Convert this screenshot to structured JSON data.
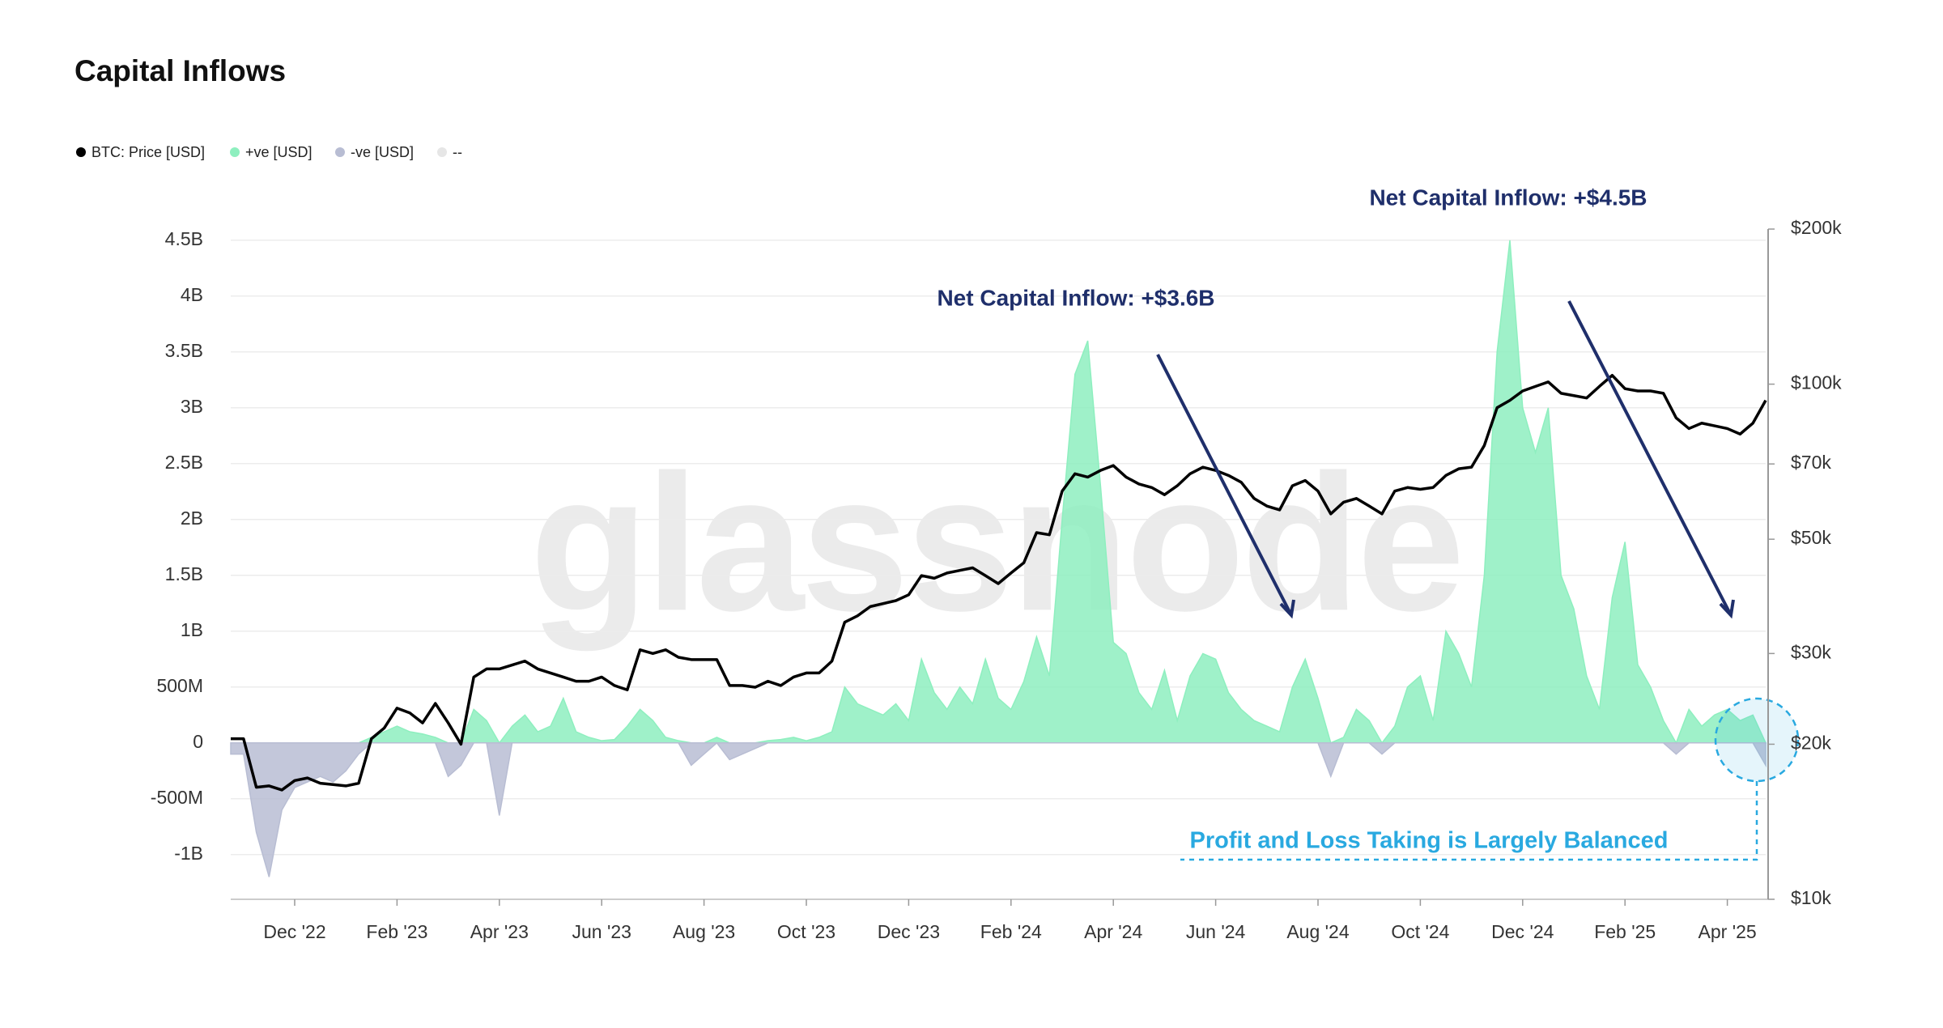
{
  "chart_data": {
    "type": "area",
    "title": "Capital Inflows",
    "watermark": "glassnode",
    "annotations": [
      "Net Capital Inflow: +$3.6B",
      "Net Capital Inflow: +$4.5B",
      "Profit and Loss Taking is Largely Balanced"
    ],
    "categories": [
      null,
      null,
      null,
      null,
      null,
      "Dec '22",
      null,
      null,
      null,
      null,
      null,
      null,
      null,
      "Feb '23",
      null,
      null,
      null,
      null,
      null,
      null,
      null,
      "Apr '23",
      null,
      null,
      null,
      null,
      null,
      null,
      null,
      "Jun '23",
      null,
      null,
      null,
      null,
      null,
      null,
      null,
      "Aug '23",
      null,
      null,
      null,
      null,
      null,
      null,
      null,
      "Oct '23",
      null,
      null,
      null,
      null,
      null,
      null,
      null,
      "Dec '23",
      null,
      null,
      null,
      null,
      null,
      null,
      null,
      "Feb '24",
      null,
      null,
      null,
      null,
      null,
      null,
      null,
      "Apr '24",
      null,
      null,
      null,
      null,
      null,
      null,
      null,
      "Jun '24",
      null,
      null,
      null,
      null,
      null,
      null,
      null,
      "Aug '24",
      null,
      null,
      null,
      null,
      null,
      null,
      null,
      "Oct '24",
      null,
      null,
      null,
      null,
      null,
      null,
      null,
      "Dec '24",
      null,
      null,
      null,
      null,
      null,
      null,
      null,
      "Feb '25",
      null,
      null,
      null,
      null,
      null,
      null,
      null,
      "Apr '25",
      null,
      null,
      null
    ],
    "series": [
      {
        "name": "BTC: Price [USD]",
        "color": "#000000",
        "type": "line",
        "axis": "y2",
        "values": [
          20500,
          20500,
          16500,
          16600,
          16300,
          17000,
          17200,
          16800,
          16700,
          16600,
          16800,
          20500,
          21500,
          23500,
          23000,
          22000,
          24000,
          22000,
          20000,
          27000,
          28000,
          28000,
          28500,
          29000,
          28000,
          27500,
          27000,
          26500,
          26500,
          27000,
          26000,
          25500,
          30500,
          30000,
          30500,
          29500,
          29200,
          29200,
          29200,
          26000,
          26000,
          25800,
          26500,
          26000,
          27000,
          27500,
          27500,
          29000,
          34500,
          35500,
          37000,
          37500,
          38000,
          39000,
          42500,
          42000,
          43000,
          43500,
          44000,
          42500,
          41000,
          43000,
          45000,
          51500,
          51000,
          62000,
          67000,
          66000,
          68000,
          69500,
          66000,
          64000,
          63000,
          61000,
          63500,
          67000,
          69000,
          68000,
          66500,
          64500,
          60000,
          58000,
          57000,
          63500,
          65000,
          62000,
          56000,
          59000,
          60000,
          58000,
          56000,
          62000,
          63000,
          62500,
          63000,
          66500,
          68500,
          69000,
          76000,
          90000,
          93000,
          97000,
          99000,
          101000,
          96000,
          95000,
          94000,
          99000,
          104000,
          98000,
          97000,
          97000,
          96000,
          86000,
          82000,
          84000,
          83000,
          82000,
          80000,
          84000,
          93000
        ]
      },
      {
        "name": "+ve [USD]",
        "color": "#8eefbf",
        "values": [
          0,
          0,
          0,
          0,
          0,
          0,
          0,
          0,
          0,
          0,
          0,
          50000000.0,
          100000000.0,
          150000000.0,
          100000000.0,
          80000000.0,
          50000000.0,
          0,
          0,
          300000000.0,
          200000000.0,
          0,
          150000000.0,
          250000000.0,
          100000000.0,
          150000000.0,
          400000000.0,
          100000000.0,
          50000000.0,
          20000000.0,
          30000000.0,
          150000000.0,
          300000000.0,
          200000000.0,
          50000000.0,
          20000000.0,
          0,
          0,
          50000000.0,
          0,
          0,
          0,
          20000000.0,
          30000000.0,
          50000000.0,
          20000000.0,
          50000000.0,
          100000000.0,
          500000000.0,
          350000000.0,
          300000000.0,
          250000000.0,
          350000000.0,
          200000000.0,
          750000000.0,
          450000000.0,
          300000000.0,
          500000000.0,
          350000000.0,
          750000000.0,
          400000000.0,
          300000000.0,
          550000000.0,
          950000000.0,
          600000000.0,
          2000000000.0,
          3300000000.0,
          3600000000.0,
          2300000000.0,
          900000000.0,
          800000000.0,
          450000000.0,
          300000000.0,
          650000000.0,
          200000000.0,
          600000000.0,
          800000000.0,
          750000000.0,
          450000000.0,
          300000000.0,
          200000000.0,
          150000000.0,
          100000000.0,
          500000000.0,
          750000000.0,
          400000000.0,
          0,
          50000000.0,
          300000000.0,
          200000000.0,
          0,
          150000000.0,
          500000000.0,
          600000000.0,
          200000000.0,
          1000000000.0,
          800000000.0,
          500000000.0,
          1500000000.0,
          3500000000.0,
          4500000000.0,
          3000000000.0,
          2600000000.0,
          3000000000.0,
          1500000000.0,
          1200000000.0,
          600000000.0,
          300000000.0,
          1300000000.0,
          1800000000.0,
          700000000.0,
          500000000.0,
          200000000.0,
          0,
          300000000.0,
          150000000.0,
          250000000.0,
          300000000.0,
          200000000.0,
          250000000.0,
          0
        ]
      },
      {
        "name": "-ve [USD]",
        "color": "#b8bdd3",
        "values": [
          -100000000.0,
          -100000000.0,
          -800000000.0,
          -1200000000.0,
          -600000000.0,
          -400000000.0,
          -350000000.0,
          -300000000.0,
          -350000000.0,
          -250000000.0,
          -100000000.0,
          0,
          0,
          0,
          0,
          0,
          0,
          -300000000.0,
          -200000000.0,
          0,
          0,
          -650000000.0,
          0,
          0,
          0,
          0,
          0,
          0,
          0,
          0,
          0,
          0,
          0,
          0,
          0,
          0,
          -200000000.0,
          -100000000.0,
          0,
          -150000000.0,
          -100000000.0,
          -50000000.0,
          0,
          0,
          0,
          0,
          0,
          0,
          0,
          0,
          0,
          0,
          0,
          0,
          0,
          0,
          0,
          0,
          0,
          0,
          0,
          0,
          0,
          0,
          0,
          0,
          0,
          0,
          0,
          0,
          0,
          0,
          0,
          0,
          0,
          0,
          0,
          0,
          0,
          0,
          0,
          0,
          0,
          0,
          0,
          0,
          -300000000.0,
          0,
          0,
          0,
          -100000000.0,
          0,
          0,
          0,
          0,
          0,
          0,
          0,
          0,
          0,
          0,
          0,
          0,
          0,
          0,
          0,
          0,
          0,
          0,
          0,
          0,
          0,
          0,
          -100000000.0,
          0,
          0,
          0,
          0,
          0,
          0,
          -200000000.0
        ]
      },
      {
        "name": "--",
        "color": "#e6e6e6"
      }
    ],
    "ylim": [
      -1400000000.0,
      4600000000.0
    ],
    "yticks": [
      {
        "value": -1000000000.0,
        "label": "-1B"
      },
      {
        "value": -500000000.0,
        "label": "-500M"
      },
      0,
      {
        "value": 500000000.0,
        "label": "500M"
      },
      {
        "value": 1000000000.0,
        "label": "1B"
      },
      {
        "value": 1500000000.0,
        "label": "1.5B"
      },
      {
        "value": 2000000000.0,
        "label": "2B"
      },
      {
        "value": 2500000000.0,
        "label": "2.5B"
      },
      {
        "value": 3000000000.0,
        "label": "3B"
      },
      {
        "value": 3500000000.0,
        "label": "3.5B"
      },
      {
        "value": 4000000000.0,
        "label": "4B"
      },
      {
        "value": 4500000000.0,
        "label": "4.5B"
      }
    ],
    "y2lim": [
      10000,
      200000
    ],
    "y2log": true,
    "y2ticks": [
      {
        "value": 10000,
        "label": "$10k"
      },
      {
        "value": 20000,
        "label": "$20k"
      },
      {
        "value": 30000,
        "label": "$30k"
      },
      {
        "value": 50000,
        "label": "$50k"
      },
      {
        "value": 70000,
        "label": "$70k"
      },
      {
        "value": 100000,
        "label": "$100k"
      },
      {
        "value": 200000,
        "label": "$200k"
      }
    ],
    "grid": true
  }
}
